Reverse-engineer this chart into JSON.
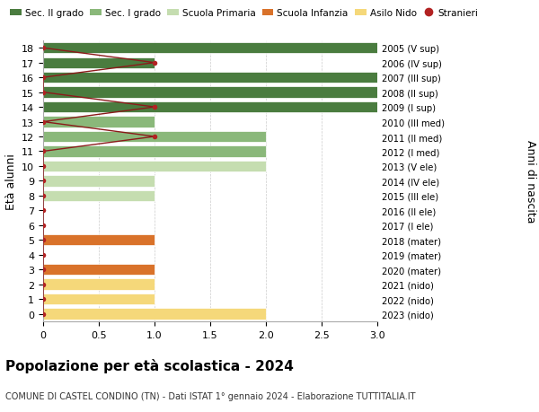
{
  "ages": [
    18,
    17,
    16,
    15,
    14,
    13,
    12,
    11,
    10,
    9,
    8,
    7,
    6,
    5,
    4,
    3,
    2,
    1,
    0
  ],
  "right_labels": [
    "2005 (V sup)",
    "2006 (IV sup)",
    "2007 (III sup)",
    "2008 (II sup)",
    "2009 (I sup)",
    "2010 (III med)",
    "2011 (II med)",
    "2012 (I med)",
    "2013 (V ele)",
    "2014 (IV ele)",
    "2015 (III ele)",
    "2016 (II ele)",
    "2017 (I ele)",
    "2018 (mater)",
    "2019 (mater)",
    "2020 (mater)",
    "2021 (nido)",
    "2022 (nido)",
    "2023 (nido)"
  ],
  "bar_values": [
    3.0,
    1.0,
    3.0,
    3.0,
    3.0,
    1.0,
    2.0,
    2.0,
    2.0,
    1.0,
    1.0,
    0.0,
    0.0,
    1.0,
    0.0,
    1.0,
    1.0,
    1.0,
    2.0
  ],
  "bar_colors": [
    "#4a7c3f",
    "#4a7c3f",
    "#4a7c3f",
    "#4a7c3f",
    "#4a7c3f",
    "#8ab87a",
    "#8ab87a",
    "#8ab87a",
    "#c5ddb0",
    "#c5ddb0",
    "#c5ddb0",
    "#c5ddb0",
    "#c5ddb0",
    "#d9722a",
    "#d9722a",
    "#d9722a",
    "#f5d87a",
    "#f5d87a",
    "#f5d87a"
  ],
  "stranieri_x": [
    0,
    1.0,
    0,
    0,
    1.0,
    0,
    1.0,
    0,
    0,
    0,
    0,
    0,
    0,
    0,
    0,
    0,
    0,
    0,
    0
  ],
  "stranieri_color": "#b22222",
  "stranieri_line_color": "#8b1a1a",
  "legend_labels": [
    "Sec. II grado",
    "Sec. I grado",
    "Scuola Primaria",
    "Scuola Infanzia",
    "Asilo Nido",
    "Stranieri"
  ],
  "legend_colors": [
    "#4a7c3f",
    "#8ab87a",
    "#c5ddb0",
    "#d9722a",
    "#f5d87a",
    "#b22222"
  ],
  "ylabel_left": "Età alunni",
  "ylabel_right": "Anni di nascita",
  "title": "Popolazione per età scolastica - 2024",
  "subtitle": "COMUNE DI CASTEL CONDINO (TN) - Dati ISTAT 1° gennaio 2024 - Elaborazione TUTTITALIA.IT",
  "xlim": [
    0,
    3.0
  ],
  "xticks": [
    0,
    0.5,
    1.0,
    1.5,
    2.0,
    2.5,
    3.0
  ],
  "bg_color": "#ffffff",
  "plot_bg_color": "#ffffff",
  "grid_color": "#cccccc"
}
